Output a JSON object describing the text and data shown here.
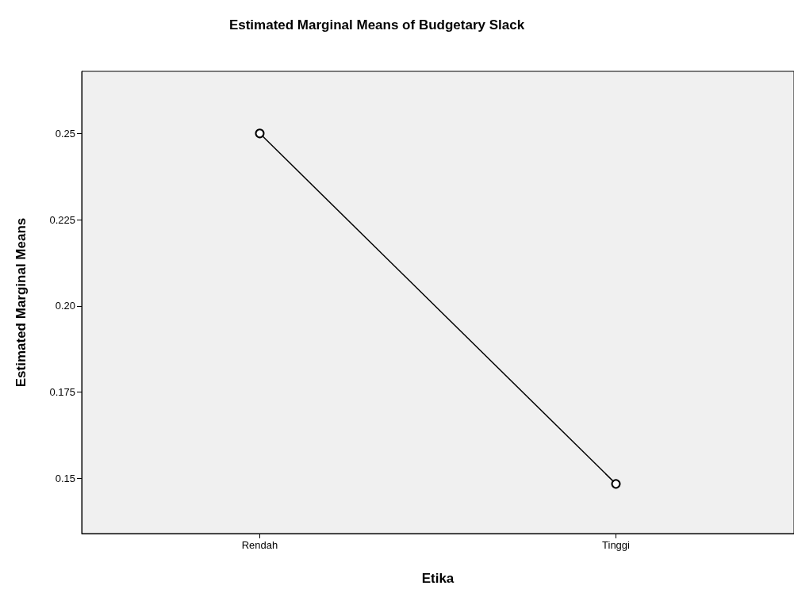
{
  "chart_data": {
    "type": "line",
    "title": "Estimated Marginal Means of Budgetary Slack",
    "xlabel": "Etika",
    "ylabel": "Estimated Marginal Means",
    "categories": [
      "Rendah",
      "Tinggi"
    ],
    "series": [
      {
        "color": "#000000",
        "values": [
          0.25,
          0.1484
        ]
      }
    ],
    "ylim": [
      0.134,
      0.268
    ],
    "yticks": [
      0.15,
      0.175,
      {
        "value": 0.2,
        "label": "0.20"
      },
      0.225,
      0.25
    ],
    "grid": false,
    "marker": "circle",
    "line_style": "solid"
  }
}
